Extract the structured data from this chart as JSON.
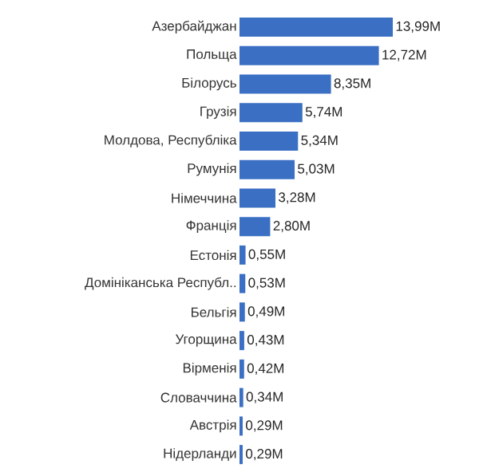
{
  "chart_data": {
    "type": "bar",
    "orientation": "horizontal",
    "color": "#3a6fc4",
    "categories": [
      "Азербайджан",
      "Польща",
      "Білорусь",
      "Грузія",
      "Молдова, Республіка",
      "Румунія",
      "Німеччина",
      "Франція",
      "Естонія",
      "Домініканська Республ..",
      "Бельгія",
      "Угорщина",
      "Вірменія",
      "Словаччина",
      "Австрія",
      "Нідерланди"
    ],
    "values": [
      13.99,
      12.72,
      8.35,
      5.74,
      5.34,
      5.03,
      3.28,
      2.8,
      0.55,
      0.53,
      0.49,
      0.43,
      0.42,
      0.34,
      0.29,
      0.29
    ],
    "value_labels": [
      "13,99M",
      "12,72M",
      "8,35M",
      "5,74M",
      "5,34M",
      "5,03M",
      "3,28M",
      "2,80M",
      "0,55M",
      "0,53M",
      "0,49M",
      "0,43M",
      "0,42M",
      "0,34M",
      "0,29M",
      "0,29M"
    ]
  }
}
